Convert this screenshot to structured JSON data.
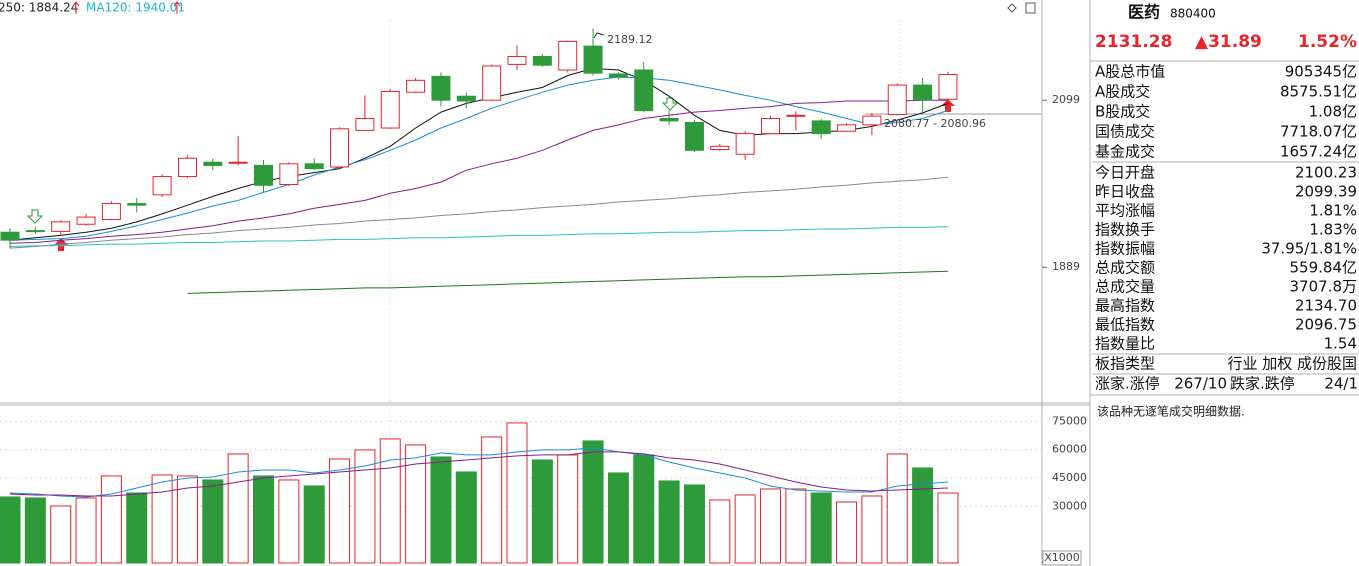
{
  "toolbar": {
    "ma250": "250: 1884.24",
    "ma120": "MA120: 1940.01",
    "ma250_color": "#222222",
    "ma120_color": "#1fb5c8"
  },
  "chart_data": [
    {
      "type": "candlestick",
      "up_color": "#e8242c",
      "down_color": "#2e9a3a",
      "open": [
        1933,
        1935,
        1934,
        1943,
        1949,
        1969,
        1980,
        2003,
        2021,
        2020,
        2017,
        1993,
        2019,
        2015,
        2061,
        2064,
        2109,
        2129,
        2104,
        2099,
        2144,
        2154,
        2137,
        2167,
        2132,
        2137,
        2076,
        2071,
        2037,
        2031,
        2057,
        2079,
        2073,
        2060,
        2068,
        2081,
        2118,
        2100.23
      ],
      "high": [
        1938,
        1940,
        1948,
        1956,
        1972,
        1976,
        2006,
        2030,
        2026,
        2054,
        2024,
        2021,
        2026,
        2065,
        2105,
        2113,
        2127,
        2134,
        2108,
        2144,
        2168,
        2157,
        2174,
        2189.12,
        2134,
        2147,
        2086,
        2074,
        2044,
        2060,
        2079,
        2085,
        2076,
        2070,
        2083,
        2120,
        2127,
        2134.7
      ],
      "low": [
        1913,
        1931,
        1928,
        1941,
        1948,
        1958,
        1977,
        2001,
        2011,
        2017,
        1983,
        1991,
        2011,
        2013,
        2060,
        2063,
        2108,
        2091,
        2089,
        2098,
        2137,
        2141,
        2134,
        2130,
        2125,
        2084,
        2068,
        2034,
        2035,
        2024,
        2056,
        2061,
        2051,
        2059,
        2055,
        2080,
        2084,
        2096.75
      ],
      "close": [
        1923,
        1934,
        1946,
        1952,
        1969,
        1967,
        2003,
        2026,
        2017,
        2021,
        1992,
        2019,
        2013,
        2063,
        2076,
        2110,
        2124,
        2099,
        2098,
        2142,
        2154,
        2143,
        2173,
        2133,
        2128,
        2086,
        2073,
        2036,
        2041,
        2057,
        2076,
        2080,
        2057,
        2068,
        2079,
        2118,
        2099.39,
        2131.28
      ],
      "ylim": [
        1722,
        2225
      ],
      "yticks": [
        2099,
        1889
      ],
      "lines": [
        {
          "color": "#111111",
          "values": [
            1923,
            1926,
            1929,
            1933,
            1938,
            1946,
            1956,
            1967,
            1978,
            1988,
            1997,
            2003,
            2008,
            2013,
            2026,
            2041,
            2064,
            2084,
            2095,
            2102,
            2109,
            2115,
            2130,
            2139,
            2137,
            2124,
            2104,
            2080,
            2061,
            2055,
            2057,
            2057,
            2059,
            2061,
            2066,
            2074,
            2083,
            2095
          ]
        },
        {
          "color": "#1a8fd6",
          "values": [
            1923,
            1924,
            1925,
            1928,
            1934,
            1941,
            1949,
            1957,
            1966,
            1973,
            1983,
            1993,
            2005,
            2015,
            2024,
            2036,
            2049,
            2064,
            2076,
            2089,
            2099,
            2109,
            2118,
            2124,
            2128,
            2127,
            2124,
            2118,
            2112,
            2105,
            2099,
            2091,
            2084,
            2076,
            2068,
            2071,
            2076,
            2086
          ]
        },
        {
          "color": "#8b1a8b",
          "values": [
            1919,
            1920,
            1923,
            1925,
            1928,
            1930,
            1933,
            1937,
            1941,
            1947,
            1951,
            1956,
            1963,
            1968,
            1973,
            1982,
            1988,
            1996,
            2011,
            2019,
            2026,
            2036,
            2049,
            2061,
            2068,
            2076,
            2080,
            2084,
            2086,
            2089,
            2091,
            2095,
            2096,
            2098,
            2098,
            2098,
            2099,
            2099
          ]
        },
        {
          "color": "#8a8a8a",
          "values": [
            1913,
            1915,
            1918,
            1920,
            1923,
            1925,
            1927,
            1930,
            1932,
            1935,
            1937,
            1939,
            1942,
            1944,
            1947,
            1949,
            1951,
            1954,
            1956,
            1959,
            1961,
            1964,
            1966,
            1968,
            1971,
            1973,
            1975,
            1978,
            1980,
            1983,
            1985,
            1987,
            1990,
            1992,
            1995,
            1997,
            1999,
            2002
          ]
        },
        {
          "color": "#27c1d0",
          "values": [
            1915,
            1916,
            1916,
            1917,
            1918,
            1918,
            1919,
            1920,
            1920,
            1921,
            1922,
            1922,
            1923,
            1924,
            1924,
            1925,
            1926,
            1926,
            1927,
            1928,
            1929,
            1929,
            1930,
            1931,
            1931,
            1932,
            1933,
            1933,
            1934,
            1935,
            1935,
            1936,
            1937,
            1937,
            1938,
            1939,
            1939,
            1940
          ]
        },
        {
          "color": "#1a7a1a",
          "values": [
            null,
            null,
            null,
            null,
            null,
            null,
            null,
            1856,
            1857,
            1858,
            1859,
            1860,
            1861,
            1862,
            1863,
            1863,
            1864,
            1865,
            1866,
            1867,
            1868,
            1869,
            1870,
            1871,
            1872,
            1873,
            1874,
            1875,
            1876,
            1877,
            1877,
            1878,
            1879,
            1880,
            1881,
            1882,
            1883,
            1884
          ]
        }
      ],
      "annotations": [
        "2189.12",
        "2080.77 - 2080.96"
      ]
    },
    {
      "type": "bar",
      "values": [
        34980,
        34450,
        30210,
        34450,
        46110,
        37100,
        46640,
        46110,
        43990,
        57770,
        46110,
        43990,
        40810,
        55120,
        59890,
        65720,
        62540,
        56180,
        48230,
        66780,
        74200,
        54590,
        57240,
        64660,
        47700,
        57240,
        43460,
        41340,
        33390,
        36040,
        39220,
        39220,
        37100,
        32330,
        35510,
        57770,
        50350,
        37078
      ],
      "ylim": [
        0,
        83700
      ],
      "yticks": [
        75000,
        60000,
        45000,
        30000
      ],
      "grid": true,
      "unit_label": "X1000",
      "lines": [
        {
          "color": "#1a8fd6",
          "values": [
            37100,
            36570,
            35510,
            34980,
            36570,
            39750,
            42930,
            45050,
            45580,
            48230,
            49290,
            49290,
            47700,
            49290,
            51410,
            54590,
            55650,
            58300,
            57240,
            57240,
            58830,
            59890,
            59890,
            60950,
            58830,
            57240,
            53530,
            50350,
            47700,
            45050,
            40810,
            38690,
            38160,
            37630,
            37630,
            40810,
            41870,
            42930
          ]
        },
        {
          "color": "#8b1a8b",
          "values": [
            36570,
            36040,
            36040,
            35510,
            35510,
            36570,
            37630,
            39750,
            40810,
            42930,
            45050,
            46110,
            47170,
            48230,
            49290,
            50350,
            52470,
            53530,
            54590,
            55650,
            56710,
            57240,
            57240,
            58830,
            58830,
            57770,
            55650,
            54590,
            52470,
            49290,
            46110,
            42930,
            40280,
            38690,
            38160,
            38690,
            39220,
            39750
          ]
        }
      ]
    }
  ],
  "panel": {
    "name": "医药",
    "code": "880400",
    "price": "2131.28",
    "change": "▲31.89",
    "change_pct": "1.52%",
    "price_color": "#e8242c",
    "rows": [
      {
        "label": "A股总市值",
        "value": "905345亿",
        "color": "#111111"
      },
      {
        "label": "A股成交",
        "value": "8575.51亿",
        "color": "#111111"
      },
      {
        "label": "B股成交",
        "value": "1.08亿",
        "color": "#111111"
      },
      {
        "label": "国债成交",
        "value": "7718.07亿",
        "color": "#111111"
      },
      {
        "label": "基金成交",
        "value": "1657.24亿",
        "color": "#111111"
      },
      {
        "label": "今日开盘",
        "value": "2100.23",
        "color": "#e8242c"
      },
      {
        "label": "昨日收盘",
        "value": "2099.39",
        "color": "#111111"
      },
      {
        "label": "平均涨幅",
        "value": "1.81%",
        "color": "#e8242c"
      },
      {
        "label": "指数换手",
        "value": "1.83%",
        "color": "#111111"
      },
      {
        "label": "指数振幅",
        "value": "37.95/1.81%",
        "color": "#111111"
      },
      {
        "label": "总成交额",
        "value": "559.84亿",
        "color": "#111111"
      },
      {
        "label": "总成交量",
        "value": "3707.8万",
        "color": "#111111"
      },
      {
        "label": "最高指数",
        "value": "2134.70",
        "color": "#e8242c"
      },
      {
        "label": "最低指数",
        "value": "2096.75",
        "color": "#2e9a3a"
      },
      {
        "label": "指数量比",
        "value": "1.54",
        "color": "#e8242c"
      },
      {
        "label": "板指类型",
        "value": "行业 加权 成份股国",
        "color": "#333333"
      }
    ],
    "breadth": {
      "up_label": "涨家.涨停",
      "up_value": "267/10",
      "down_label": "跌家.跌停",
      "down_value": "24/1",
      "up_color": "#e8242c",
      "down_color": "#2e9a3a"
    },
    "message": "该品种无逐笔成交明细数据."
  }
}
